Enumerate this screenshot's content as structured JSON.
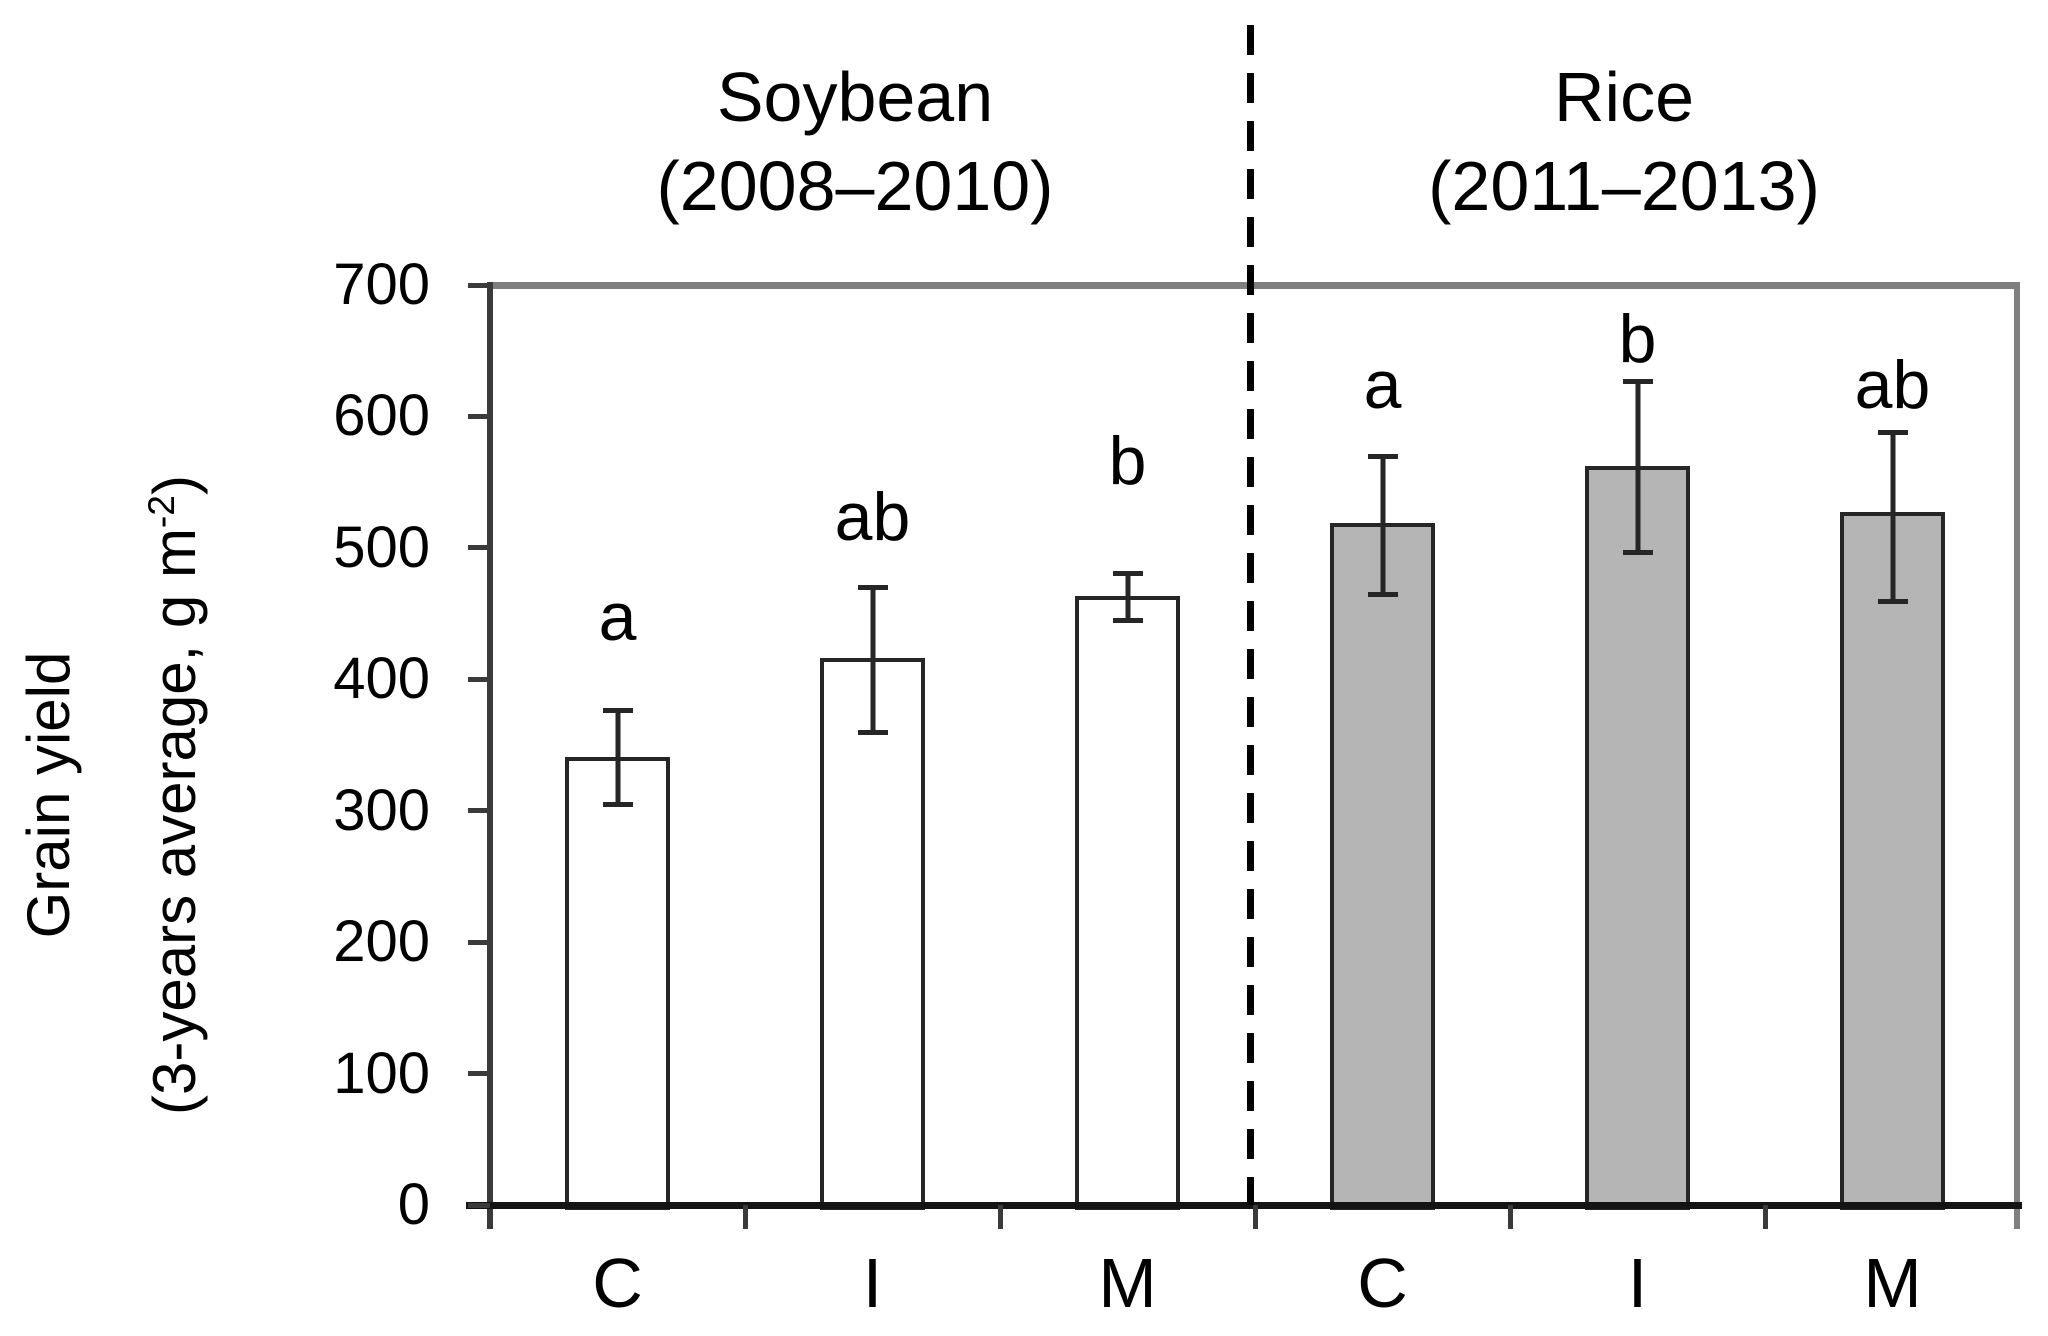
{
  "figure": {
    "background": "#ffffff",
    "group_titles": [
      {
        "line1": "Soybean",
        "line2": "(2008–2010)"
      },
      {
        "line1": "Rice",
        "line2": "(2011–2013)"
      }
    ],
    "y_axis_title": {
      "line1": "Grain yield",
      "line2_pre": "(3-years average, g m",
      "line2_sup": "-2",
      "line2_post": ")"
    }
  },
  "colors": {
    "background": "#ffffff",
    "text": "#000000",
    "bar_border": "#262626",
    "soybean_fill": "#ffffff",
    "rice_fill": "#b5b5b5",
    "error_bar": "#262626",
    "axis_left_color": "#3a3a3a",
    "axis_bottom_color": "#141414",
    "box_top_right_color": "#7f7f7f",
    "dashed_divider": "#000000"
  },
  "chart_data": {
    "type": "bar",
    "title": "",
    "xlabel": "",
    "ylabel": "Grain yield (3-years average, g m⁻²)",
    "ylim": [
      0,
      700
    ],
    "yticks": [
      700,
      600,
      500,
      400,
      300,
      200,
      100,
      0
    ],
    "grid": false,
    "legend": "none",
    "separator": "vertical dashed line between Soybean and Rice groups",
    "groups": [
      {
        "name": "Soybean (2008–2010)",
        "bar_fill": "#ffffff",
        "categories": [
          "C",
          "I",
          "M"
        ],
        "values": [
          341,
          416,
          463
        ],
        "error_low": [
          304,
          359,
          444
        ],
        "error_high": [
          377,
          470,
          481
        ],
        "sig_letters": [
          "a",
          "ab",
          "b"
        ]
      },
      {
        "name": "Rice (2011–2013)",
        "bar_fill": "#b5b5b5",
        "categories": [
          "C",
          "I",
          "M"
        ],
        "values": [
          519,
          562,
          527
        ],
        "error_low": [
          464,
          496,
          459
        ],
        "error_high": [
          570,
          627,
          588
        ],
        "sig_letters": [
          "a",
          "b",
          "ab"
        ]
      }
    ]
  }
}
